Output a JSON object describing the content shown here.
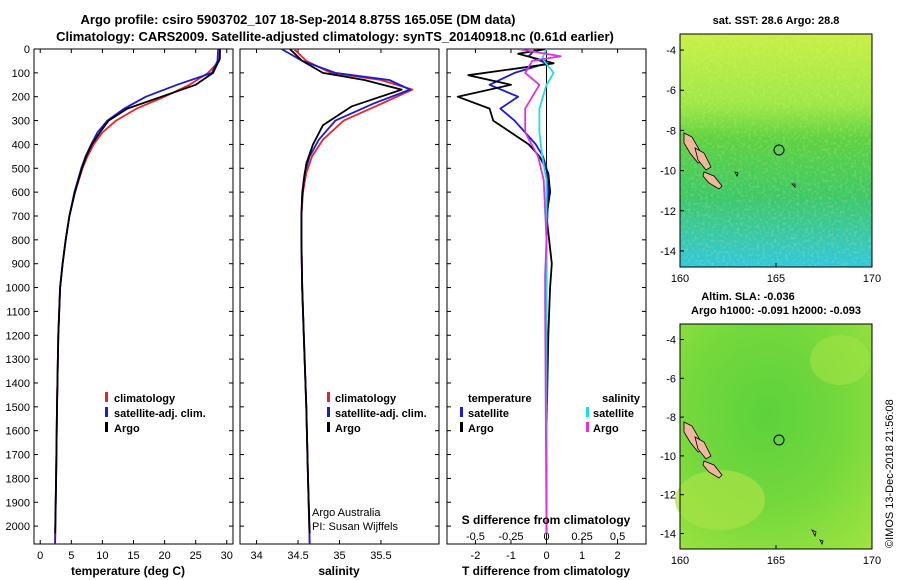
{
  "header": {
    "line1": "Argo profile: csiro 5903702_107 18-Sep-2014 8.875S 165.05E (DM data)",
    "line2": "Climatology: CARS2009. Satellite-adjusted climatology: synTS_20140918.nc (0.61d earlier)"
  },
  "colors": {
    "climatology": "#e8242a",
    "satellite": "#1a1adc",
    "argo": "#000000",
    "satellite_salinity": "#18e0e8",
    "argo_salinity": "#e030e0"
  },
  "chart_data": [
    {
      "type": "line",
      "panel": "temperature",
      "xlabel": "temperature (deg C)",
      "ylabel": "",
      "xlim": [
        -1,
        31
      ],
      "ylim": [
        2075,
        0
      ],
      "xticks": [
        0,
        5,
        10,
        15,
        20,
        25,
        30
      ],
      "yticks": [
        0,
        100,
        200,
        300,
        400,
        500,
        600,
        700,
        800,
        900,
        1000,
        1100,
        1200,
        1300,
        1400,
        1500,
        1600,
        1700,
        1800,
        1900,
        2000
      ],
      "grid": false,
      "legend": {
        "position": "lower-right",
        "entries": [
          "climatology",
          "satellite-adj. clim.",
          "Argo"
        ]
      },
      "series": [
        {
          "name": "climatology",
          "color": "#e8242a",
          "x": [
            28.9,
            28.8,
            27.0,
            24.0,
            20.0,
            15.5,
            12.2,
            10.0,
            8.6,
            7.6,
            6.8,
            5.6,
            4.7,
            4.1,
            3.6,
            3.2,
            2.9,
            2.7,
            2.55,
            2.4
          ],
          "y": [
            0,
            50,
            100,
            150,
            200,
            250,
            300,
            350,
            400,
            450,
            500,
            600,
            700,
            800,
            900,
            1000,
            1200,
            1500,
            1800,
            2075
          ]
        },
        {
          "name": "satellite-adj. clim.",
          "color": "#1a1adc",
          "x": [
            28.6,
            28.5,
            27.6,
            22.0,
            17.0,
            13.5,
            10.8,
            9.2,
            8.2,
            7.3,
            6.6,
            5.5,
            4.7,
            4.1,
            3.6,
            3.2,
            2.9,
            2.7,
            2.55,
            2.4
          ],
          "y": [
            0,
            50,
            100,
            150,
            200,
            250,
            300,
            350,
            400,
            450,
            500,
            600,
            700,
            800,
            900,
            1000,
            1200,
            1500,
            1800,
            2075
          ]
        },
        {
          "name": "Argo",
          "color": "#000000",
          "x": [
            28.9,
            28.9,
            27.8,
            25.0,
            19.5,
            14.0,
            11.0,
            9.6,
            8.3,
            7.4,
            6.7,
            5.6,
            4.7,
            4.1,
            3.6,
            3.2,
            2.9,
            2.7,
            2.55,
            2.4
          ],
          "y": [
            0,
            40,
            100,
            150,
            200,
            250,
            300,
            350,
            400,
            450,
            500,
            600,
            700,
            800,
            900,
            1000,
            1200,
            1500,
            1800,
            2030
          ]
        }
      ]
    },
    {
      "type": "line",
      "panel": "salinity",
      "xlabel": "salinity",
      "ylabel": "",
      "xlim": [
        33.8,
        36.2
      ],
      "ylim": [
        2075,
        0
      ],
      "xticks": [
        34,
        34.5,
        35,
        35.5
      ],
      "grid": false,
      "legend": {
        "position": "lower-right",
        "entries": [
          "climatology",
          "satellite-adj. clim.",
          "Argo"
        ]
      },
      "annotation": [
        "Argo Australia",
        "PI: Susan Wijffels"
      ],
      "series": [
        {
          "name": "climatology",
          "color": "#e8242a",
          "x": [
            34.45,
            34.6,
            34.9,
            35.5,
            35.88,
            35.5,
            35.05,
            34.8,
            34.67,
            34.6,
            34.56,
            34.54,
            34.54,
            34.55,
            34.57,
            34.6,
            34.62,
            34.64
          ],
          "y": [
            0,
            50,
            100,
            130,
            170,
            230,
            300,
            380,
            450,
            520,
            600,
            700,
            800,
            1000,
            1200,
            1500,
            1800,
            2075
          ]
        },
        {
          "name": "satellite-adj. clim.",
          "color": "#1a1adc",
          "x": [
            34.3,
            34.55,
            34.95,
            35.6,
            35.85,
            35.4,
            34.95,
            34.75,
            34.64,
            34.58,
            34.55,
            34.54,
            34.54,
            34.55,
            34.57,
            34.6,
            34.62,
            34.64
          ],
          "y": [
            0,
            50,
            100,
            130,
            170,
            230,
            300,
            380,
            450,
            520,
            600,
            700,
            800,
            1000,
            1200,
            1500,
            1800,
            2075
          ]
        },
        {
          "name": "Argo",
          "color": "#000000",
          "x": [
            34.4,
            34.55,
            34.8,
            35.3,
            35.75,
            35.15,
            34.8,
            34.68,
            34.6,
            34.57,
            34.55,
            34.54,
            34.54,
            34.55,
            34.57,
            34.6,
            34.62,
            34.64
          ],
          "y": [
            0,
            50,
            100,
            130,
            170,
            240,
            320,
            400,
            480,
            550,
            620,
            700,
            800,
            1000,
            1200,
            1500,
            1800,
            2030
          ]
        }
      ]
    },
    {
      "type": "line",
      "panel": "difference",
      "xlabel": "T difference from climatology",
      "xlabel2": "S difference from climatology",
      "ylabel": "",
      "xlim": [
        -2.8,
        2.8
      ],
      "ylim": [
        2075,
        0
      ],
      "xticks": [
        -2,
        -1,
        0,
        1,
        2
      ],
      "xticks2": [
        -0.5,
        -0.25,
        0,
        0.25,
        0.5
      ],
      "grid": false,
      "legend": {
        "position": "lower",
        "groups": [
          {
            "heading": "temperature",
            "entries": [
              "satellite",
              "Argo"
            ]
          },
          {
            "heading": "salinity",
            "entries": [
              "satellite",
              "Argo"
            ]
          }
        ]
      },
      "series": [
        {
          "name": "satellite",
          "group": "temperature",
          "color": "#1a1adc",
          "x": [
            -0.3,
            -0.5,
            0.0,
            -0.9,
            -1.6,
            -0.8,
            -1.3,
            -0.9,
            -0.6,
            -0.3,
            -0.1,
            0.0,
            0.05,
            0.0,
            0.0,
            0.0,
            0.0
          ],
          "y": [
            0,
            30,
            60,
            100,
            150,
            200,
            250,
            300,
            350,
            400,
            450,
            500,
            600,
            800,
            1200,
            1600,
            2030
          ]
        },
        {
          "name": "Argo",
          "group": "temperature",
          "color": "#000000",
          "x": [
            0.0,
            -0.8,
            0.2,
            -2.2,
            -1.0,
            -2.5,
            -1.6,
            -1.5,
            -1.0,
            -0.5,
            -0.2,
            0.05,
            0.1,
            0.0,
            0.15,
            0.1,
            0.05,
            0.0,
            0.0
          ],
          "y": [
            0,
            20,
            60,
            110,
            150,
            200,
            250,
            300,
            350,
            400,
            450,
            520,
            600,
            700,
            900,
            1000,
            1200,
            1600,
            2030
          ]
        },
        {
          "name": "satellite",
          "group": "salinity",
          "color": "#18e0e8",
          "x": [
            0.0,
            -0.03,
            0.05,
            0.0,
            -0.05,
            -0.05,
            -0.03,
            0.0,
            0.0,
            0.0,
            0.0
          ],
          "y": [
            0,
            40,
            100,
            150,
            250,
            350,
            450,
            550,
            800,
            1400,
            2030
          ]
        },
        {
          "name": "Argo",
          "group": "salinity",
          "color": "#e030e0",
          "x": [
            -0.2,
            0.1,
            -0.1,
            -0.15,
            -0.05,
            -0.15,
            -0.15,
            -0.06,
            -0.02,
            0.0,
            -0.01,
            -0.01,
            0.0
          ],
          "y": [
            0,
            30,
            50,
            100,
            150,
            250,
            350,
            450,
            550,
            800,
            950,
            1050,
            2030
          ]
        }
      ]
    }
  ],
  "map_sst": {
    "header": "sat. SST: 28.6 Argo: 28.8",
    "xticks": [
      160,
      165,
      170
    ],
    "yticks": [
      -4,
      -6,
      -8,
      -10,
      -12,
      -14
    ]
  },
  "map_sla": {
    "header1": "Altim. SLA: -0.036",
    "header2": "Argo h1000: -0.091 h2000: -0.093",
    "xticks": [
      160,
      165,
      170
    ],
    "yticks": [
      -4,
      -6,
      -8,
      -10,
      -12,
      -14
    ]
  },
  "credit": "©IMOS 13-Dec-2018 21:56:08"
}
